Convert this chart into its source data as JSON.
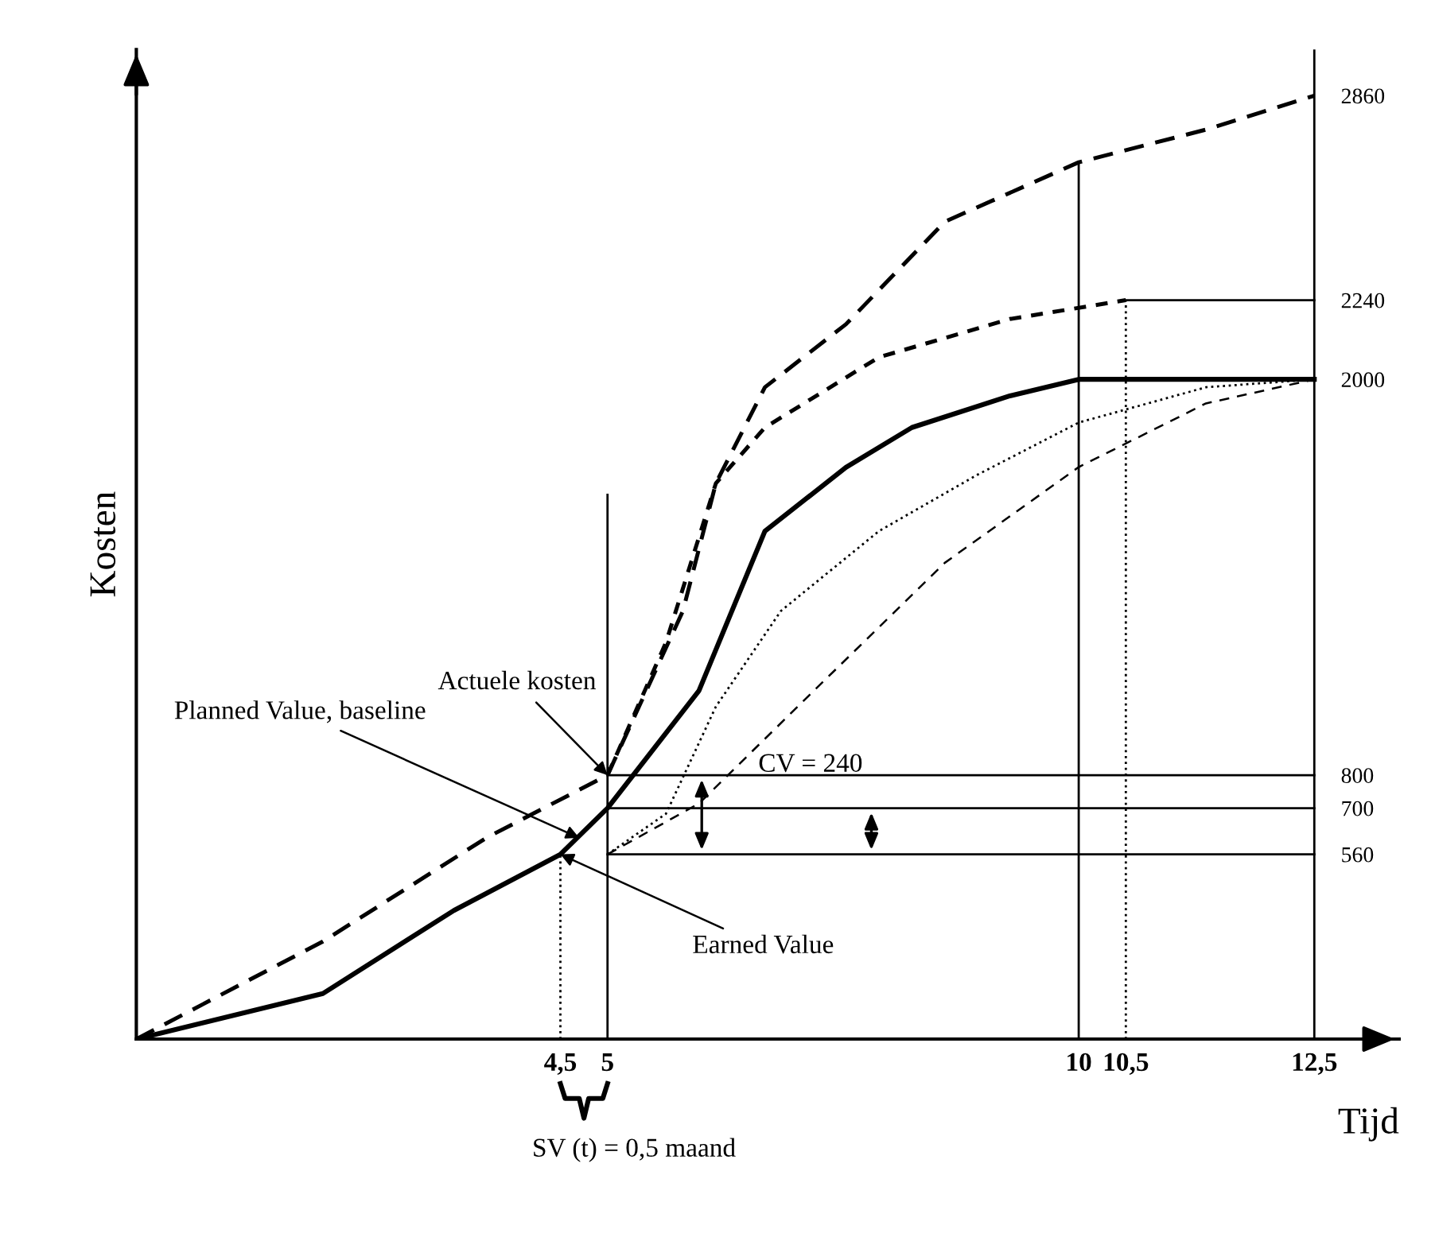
{
  "chart_data": {
    "type": "line",
    "xlabel": "Tijd",
    "ylabel": "Kosten",
    "xlim": [
      0,
      13.4
    ],
    "ylim": [
      0,
      3000
    ],
    "xticks": [
      {
        "value": 4.5,
        "label": "4,5"
      },
      5,
      10,
      {
        "value": 10.5,
        "label": "10,5"
      },
      {
        "value": 12.5,
        "label": "12,5"
      }
    ],
    "yticks": [
      560,
      700,
      800,
      2000,
      2240,
      2860
    ],
    "grid": false,
    "series": [
      {
        "color": "#000000",
        "line_style": "solid",
        "x": [
          0,
          1.98,
          3.37,
          4.5,
          5,
          5.97,
          6.67,
          7.53,
          8.23,
          9.27,
          10,
          12.5
        ],
        "values": [
          0,
          138,
          390,
          560,
          700,
          1056,
          1540,
          1733,
          1854,
          1950,
          2000,
          2000
        ]
      },
      {
        "color": "#000000",
        "line_style": "dashed",
        "x": [
          0,
          1.98,
          3.72,
          5,
          5.8,
          6.15,
          6.67,
          7.53,
          8.58,
          10,
          11.35,
          12.5
        ],
        "values": [
          0,
          296,
          611,
          800,
          1298,
          1685,
          1976,
          2167,
          2478,
          2658,
          2757,
          2860
        ]
      },
      {
        "color": "#000000",
        "line_style": "dashed",
        "x": [
          5,
          5.62,
          6.15,
          6.67,
          7.88,
          9.27,
          10.5
        ],
        "values": [
          800,
          1202,
          1685,
          1854,
          2067,
          2183,
          2240
        ]
      },
      {
        "color": "#000000",
        "line_style": "dotted",
        "x": [
          5,
          5.62,
          6.15,
          6.84,
          7.88,
          8.92,
          10,
          11.35,
          12.5
        ],
        "values": [
          560,
          683,
          1008,
          1298,
          1540,
          1710,
          1869,
          1976,
          2000
        ]
      },
      {
        "color": "#000000",
        "line_style": "dashed",
        "x": [
          5,
          5.97,
          7.19,
          8.58,
          10,
          11.35,
          12.5
        ],
        "values": [
          560,
          714,
          1056,
          1444,
          1734,
          1927,
          2000
        ]
      }
    ],
    "ref_lines": [
      {
        "axis": "x",
        "value": 4.5,
        "line_style": "dotted"
      },
      {
        "axis": "x",
        "value": 5,
        "line_style": "solid"
      },
      {
        "axis": "x",
        "value": 10,
        "line_style": "solid"
      },
      {
        "axis": "x",
        "value": 10.5,
        "line_style": "dotted"
      },
      {
        "axis": "x",
        "value": 12.5,
        "line_style": "solid"
      },
      {
        "axis": "y",
        "value": 560,
        "line_style": "solid"
      },
      {
        "axis": "y",
        "value": 700,
        "line_style": "solid"
      },
      {
        "axis": "y",
        "value": 800,
        "line_style": "solid"
      },
      {
        "axis": "y",
        "value": 2240,
        "line_style": "solid"
      }
    ],
    "annotations": [
      {
        "text": "Actuele kosten",
        "x": 5,
        "y": 800
      },
      {
        "text": "Planned Value, baseline",
        "x": 4.7,
        "y": 610
      },
      {
        "text": "Earned Value",
        "x": 4.5,
        "y": 560
      },
      "CV = 240",
      "SV (t) = 0,5 maand"
    ]
  }
}
